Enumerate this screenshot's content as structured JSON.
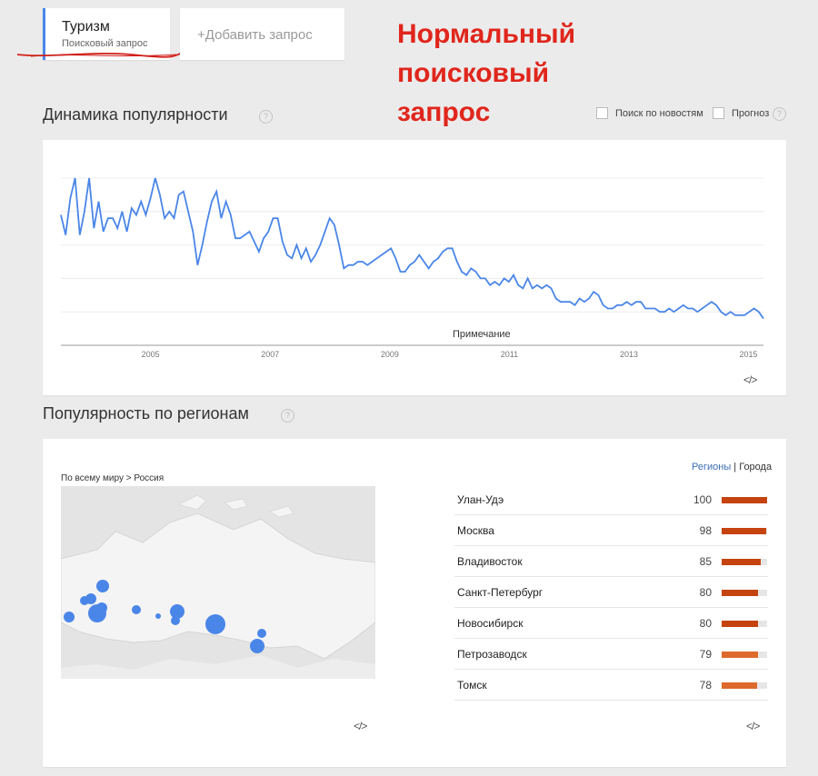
{
  "query": {
    "term": "Туризм",
    "term_type": "Поисковый запрос",
    "add_label": "+Добавить запрос"
  },
  "annotation": {
    "line1": "Нормальный",
    "line2": "поисковый",
    "line3": "запрос"
  },
  "interest_over_time": {
    "title": "Динамика популярности",
    "help": "?",
    "news_label": "Поиск по новостям",
    "forecast_label": "Прогноз",
    "note_label": "Примечание",
    "embed": "</>"
  },
  "regions": {
    "title": "Популярность по регионам",
    "help": "?",
    "breadcrumb": "По всему миру > Россия",
    "tab_regions": "Регионы",
    "tab_separator": "|",
    "tab_cities": "Города",
    "embed_map": "</>",
    "embed_list": "</>",
    "items": [
      {
        "name": "Улан-Удэ",
        "value": "100",
        "score": 100
      },
      {
        "name": "Москва",
        "value": "98",
        "score": 98
      },
      {
        "name": "Владивосток",
        "value": "85",
        "score": 85
      },
      {
        "name": "Санкт-Петербург",
        "value": "80",
        "score": 80
      },
      {
        "name": "Новосибирск",
        "value": "80",
        "score": 80
      },
      {
        "name": "Петрозаводск",
        "value": "79",
        "score": 79
      },
      {
        "name": "Томск",
        "value": "78",
        "score": 78
      }
    ]
  },
  "colors": {
    "line": "#4a86e8",
    "bar_dark": "#c5430f",
    "bar_light": "#dd6a2c",
    "annotation": "#e0261c",
    "bubble": "#4a86e8"
  },
  "chart_data": {
    "type": "line",
    "x_ticks": [
      "2005",
      "2007",
      "2009",
      "2011",
      "2013",
      "2015"
    ],
    "x_range": [
      2004.0,
      2015.75
    ],
    "ylim": [
      0,
      100
    ],
    "grid": true,
    "series": [
      {
        "values": [
          78,
          66,
          88,
          100,
          66,
          80,
          100,
          70,
          86,
          68,
          76,
          76,
          70,
          80,
          68,
          82,
          78,
          86,
          78,
          88,
          100,
          90,
          76,
          80,
          76,
          90,
          92,
          80,
          68,
          48,
          60,
          74,
          86,
          92,
          76,
          86,
          78,
          64,
          64,
          66,
          68,
          62,
          56,
          64,
          68,
          76,
          76,
          62,
          54,
          52,
          60,
          52,
          58,
          50,
          54,
          60,
          68,
          76,
          72,
          60,
          46,
          48,
          48,
          50,
          50,
          48,
          50,
          52,
          54,
          56,
          58,
          52,
          44,
          44,
          48,
          50,
          54,
          50,
          46,
          50,
          52,
          56,
          58,
          58,
          50,
          44,
          42,
          46,
          44,
          40,
          40,
          36,
          38,
          36,
          40,
          38,
          42,
          36,
          34,
          40,
          34,
          36,
          34,
          36,
          34,
          28,
          26,
          26,
          26,
          24,
          28,
          26,
          28,
          32,
          30,
          24,
          22,
          22,
          24,
          24,
          26,
          24,
          26,
          26,
          22,
          22,
          22,
          20,
          20,
          22,
          20,
          22,
          24,
          22,
          22,
          20,
          22,
          24,
          26,
          24,
          20,
          18,
          20,
          18,
          18,
          18,
          20,
          22,
          20,
          16
        ]
      }
    ]
  }
}
